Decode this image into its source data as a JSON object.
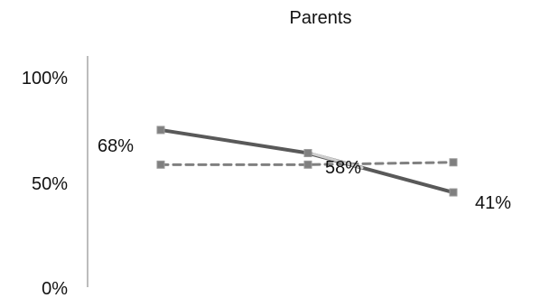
{
  "chart_data": {
    "type": "line",
    "title": "Parents",
    "xlabel": "",
    "ylabel": "",
    "categories": [
      "",
      "",
      ""
    ],
    "ylim": [
      0,
      100
    ],
    "yticks": [
      0,
      50,
      100
    ],
    "ytick_labels": [
      "0%",
      "50%",
      "100%"
    ],
    "grid": false,
    "legend": "none",
    "series": [
      {
        "values": [
          68,
          58,
          41
        ],
        "data_labels": [
          "68%",
          "58%",
          "41%"
        ],
        "style": "solid",
        "color": "#595959",
        "marker_color": "#808080"
      },
      {
        "values": [
          53,
          53,
          54
        ],
        "data_labels": [
          "",
          "",
          ""
        ],
        "style": "dashed",
        "color": "#808080",
        "marker_color": "#7f7f7f"
      }
    ],
    "colors": {
      "axis": "#a6a6a6",
      "text": "#111111"
    }
  }
}
